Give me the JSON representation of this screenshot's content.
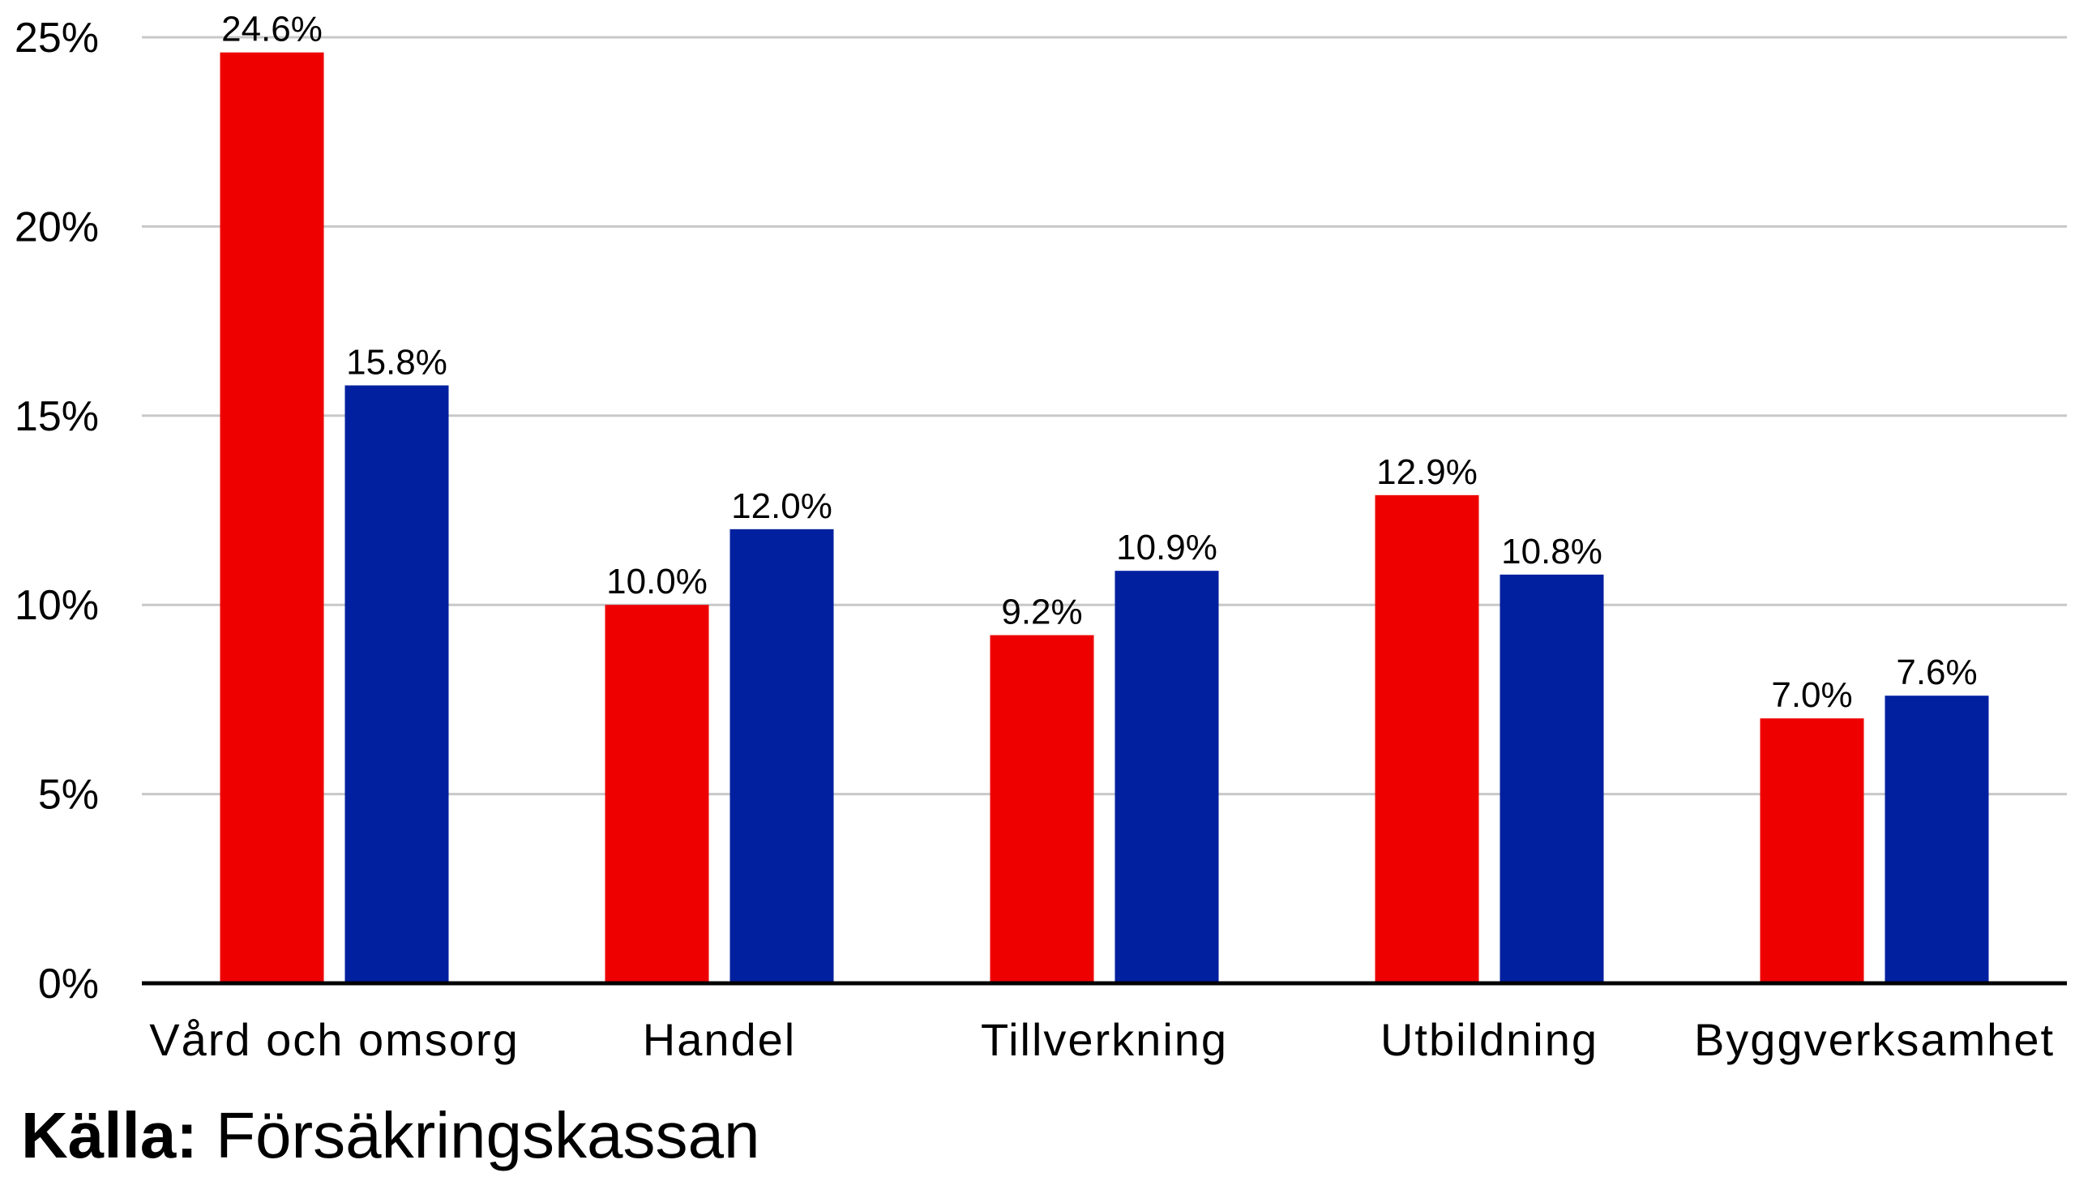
{
  "chart_data": {
    "type": "bar",
    "categories": [
      "Vård och omsorg",
      "Handel",
      "Tillverkning",
      "Utbildning",
      "Byggverksamhet"
    ],
    "series": [
      {
        "color": "#ee0000",
        "values": [
          24.6,
          10.0,
          9.2,
          12.9,
          7.0
        ],
        "labels": [
          "24.6%",
          "10.0%",
          "9.2%",
          "12.9%",
          "7.0%"
        ]
      },
      {
        "color": "#00209f",
        "values": [
          15.8,
          12.0,
          10.9,
          10.8,
          7.6
        ],
        "labels": [
          "15.8%",
          "12.0%",
          "10.9%",
          "10.8%",
          "7.6%"
        ]
      }
    ],
    "ylim": [
      0,
      25
    ],
    "yticks": [
      0,
      5,
      10,
      15,
      20,
      25
    ],
    "ytick_labels": [
      "0%",
      "5%",
      "10%",
      "15%",
      "20%",
      "25%"
    ],
    "grid": true,
    "legend": false
  },
  "source": {
    "label": "Källa:",
    "text": "Försäkringskassan"
  }
}
